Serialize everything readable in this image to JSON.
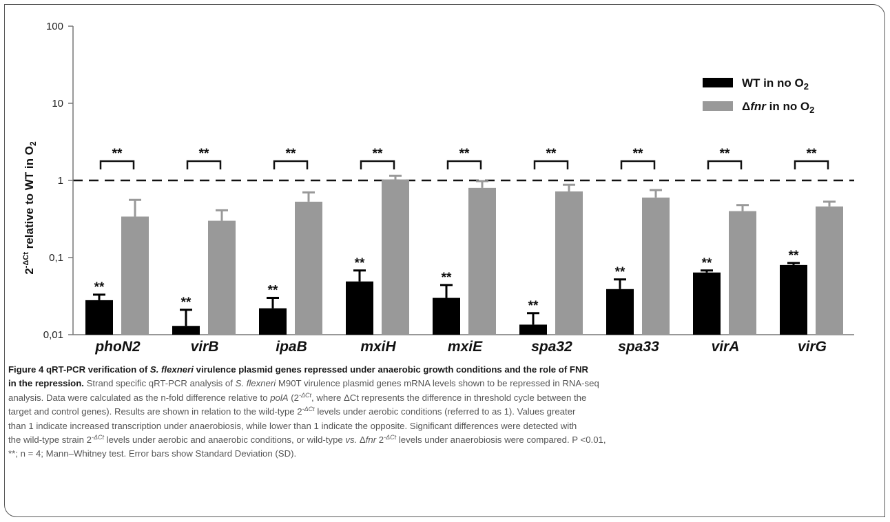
{
  "chart_data": {
    "type": "bar",
    "scale": "log",
    "categories": [
      "phoN2",
      "virB",
      "ipaB",
      "mxiH",
      "mxiE",
      "spa32",
      "spa33",
      "virA",
      "virG"
    ],
    "series": [
      {
        "name": "WT in no O",
        "name_subscript": "2",
        "color": "#000000",
        "values": [
          0.028,
          0.013,
          0.022,
          0.049,
          0.03,
          0.0135,
          0.039,
          0.064,
          0.08
        ],
        "errors": [
          0.033,
          0.021,
          0.03,
          0.068,
          0.044,
          0.019,
          0.052,
          0.068,
          0.085
        ]
      },
      {
        "name_prefix": "Δ",
        "name_italic": "fnr",
        "name": " in no O",
        "name_subscript": "2",
        "color": "#999999",
        "values": [
          0.34,
          0.3,
          0.53,
          1.03,
          0.8,
          0.72,
          0.6,
          0.4,
          0.46
        ],
        "errors": [
          0.56,
          0.41,
          0.7,
          1.15,
          0.98,
          0.88,
          0.75,
          0.48,
          0.53
        ]
      }
    ],
    "significance_labels": [
      "**",
      "**",
      "**",
      "**",
      "**",
      "**",
      "**",
      "**",
      "**"
    ],
    "wt_labels": [
      "**",
      "**",
      "**",
      "**",
      "**",
      "**",
      "**",
      "**",
      "**"
    ],
    "ylim": [
      0.01,
      100
    ],
    "yticks": [
      "0,01",
      "0,1",
      "1",
      "10",
      "100"
    ],
    "ylabel_parts": [
      "2",
      "-ΔCt",
      " relative to WT in O",
      "2"
    ],
    "reference_line": 1,
    "legend_position": "top-right"
  },
  "caption": {
    "title": "Figure 4 qRT-PCR verification of ",
    "title_italic": "S. flexneri",
    "title_rest1": " virulence plasmid genes repressed under anaerobic growth conditions and the role of FNR",
    "title_rest2": "in the repression.",
    "l2_text": " Strand specific qRT-PCR analysis of ",
    "l2_italic": "S. flexneri",
    "l2_rest": " M90T virulence plasmid genes mRNA levels shown to be repressed in RNA-seq",
    "l3_a": "analysis. Data were calculated as the n-fold difference relative to ",
    "l3_italic": "polA",
    "l3_b": " (2",
    "l3_sup": "-ΔCt",
    "l3_c": ", where ΔCt represents the difference in threshold cycle between the",
    "l4": "target and control genes). Results are shown in relation to the wild-type 2",
    "l4_sup": "-ΔCt",
    "l4_b": " levels under aerobic conditions (referred to as 1). Values greater",
    "l5": "than 1 indicate increased transcription under anaerobiosis, while lower than 1 indicate the opposite. Significant differences were detected with",
    "l6_a": "the wild-type strain 2",
    "l6_sup": "-ΔCt",
    "l6_b": " levels under aerobic and anaerobic conditions, or wild-type ",
    "l6_italic": "vs.",
    "l6_c": " Δ",
    "l6_italic2": "fnr",
    "l6_d": " 2",
    "l6_sup2": "-ΔCt",
    "l6_e": " levels under anaerobiosis were compared. P <0.01,",
    "l7": "**; n = 4; Mann–Whitney test. Error bars show Standard Deviation (SD)."
  }
}
